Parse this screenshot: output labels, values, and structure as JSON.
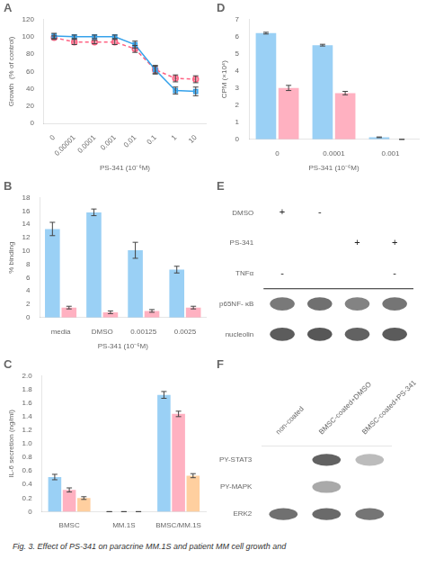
{
  "caption": "Fig. 3.  Effect of PS-341 on paracrine MM.1S and patient MM cell growth and",
  "chart_data": [
    {
      "type": "line",
      "title": "A",
      "xlabel": "PS-341 (10⁻⁶M)",
      "ylabel": "Growth  (% of control)",
      "categories": [
        "0",
        "0.00001",
        "0.0001",
        "0.001",
        "0.01",
        "0.1",
        "1",
        "10"
      ],
      "series": [
        {
          "values": [
            101,
            100,
            100,
            100,
            91,
            62,
            38,
            37
          ],
          "errors": [
            3,
            2,
            2,
            2,
            4,
            5,
            4,
            5
          ],
          "marker": "square",
          "line_style": "solid"
        },
        {
          "values": [
            99,
            94,
            94,
            94,
            86,
            62,
            52,
            51
          ],
          "errors": [
            2,
            3,
            2,
            3,
            4,
            4,
            4,
            4
          ],
          "marker": "circle",
          "line_style": "dashed"
        }
      ],
      "ylim": [
        0,
        120
      ],
      "yticks": [
        0,
        20,
        40,
        60,
        80,
        100,
        120
      ],
      "grid": false
    },
    {
      "type": "bar",
      "title": "D",
      "xlabel": "PS-341 (10⁻⁶M)",
      "ylabel": "CPM (×10⁴)",
      "categories": [
        "0",
        "0.0001",
        "0.001"
      ],
      "series": [
        {
          "values": [
            6.2,
            5.5,
            0.12
          ],
          "errors": [
            0.05,
            0.05,
            0.02
          ]
        },
        {
          "values": [
            3.0,
            2.7,
            0.0
          ],
          "errors": [
            0.15,
            0.1,
            0.0
          ]
        }
      ],
      "ylim": [
        0,
        7
      ],
      "yticks": [
        0,
        1,
        2,
        3,
        4,
        5,
        6,
        7
      ],
      "grid": false
    },
    {
      "type": "bar",
      "title": "B",
      "xlabel": "PS-341 (10⁻⁶M)",
      "ylabel": "% binding",
      "categories": [
        "media",
        "DMSO",
        "0.00125",
        "0.0025"
      ],
      "series": [
        {
          "values": [
            13.3,
            15.8,
            10.1,
            7.2
          ],
          "errors": [
            1.0,
            0.5,
            1.2,
            0.5
          ]
        },
        {
          "values": [
            1.5,
            0.8,
            1.0,
            1.5
          ],
          "errors": [
            0.2,
            0.2,
            0.2,
            0.2
          ]
        }
      ],
      "ylim": [
        0,
        18
      ],
      "yticks": [
        0,
        2,
        4,
        6,
        8,
        10,
        12,
        14,
        16,
        18
      ],
      "grid": false
    },
    {
      "type": "heatmap",
      "title": "E",
      "header_rows": [
        {
          "label": "DMSO",
          "signs": [
            "+",
            "-",
            null,
            null
          ]
        },
        {
          "label": "PS-341",
          "signs": [
            null,
            null,
            "+",
            "+"
          ]
        },
        {
          "label": "TNFα",
          "signs": [
            "-",
            null,
            null,
            "-"
          ]
        }
      ],
      "rows": [
        "p65NF- κB",
        "nucleolin"
      ],
      "cells": [
        [
          0.7,
          0.75,
          0.65,
          0.72
        ],
        [
          0.85,
          0.88,
          0.82,
          0.86
        ]
      ],
      "grid": false,
      "tick_labels": "y"
    },
    {
      "type": "bar",
      "title": "C",
      "ylabel": "IL-6 secretion (ng/ml)",
      "categories": [
        "BMSC",
        "MM.1S",
        "BMSC/MM.1S"
      ],
      "series": [
        {
          "values": [
            0.51,
            0.0,
            1.72
          ],
          "errors": [
            0.04,
            0.0,
            0.05
          ]
        },
        {
          "values": [
            0.32,
            0.0,
            1.44
          ],
          "errors": [
            0.03,
            0.0,
            0.04
          ]
        },
        {
          "values": [
            0.2,
            0.0,
            0.53
          ],
          "errors": [
            0.02,
            0.0,
            0.03
          ]
        }
      ],
      "ylim": [
        0,
        2.0
      ],
      "yticks": [
        0,
        0.2,
        0.4,
        0.6,
        0.8,
        {
          "value": 1.0,
          "label": "1.0"
        },
        1.2,
        1.4,
        1.6,
        1.8,
        {
          "value": 2.0,
          "label": "2.0"
        }
      ],
      "grid": false
    },
    {
      "type": "heatmap",
      "title": "F",
      "columns": [
        "non-coated",
        "BMSC-coated+DMSO",
        "BMSC-coated+PS-341"
      ],
      "rows": [
        "PY-STAT3",
        "PY-MAPK",
        "ERK2"
      ],
      "cells": [
        [
          0.0,
          0.82,
          0.35
        ],
        [
          0.0,
          0.45,
          0.0
        ],
        [
          0.75,
          0.78,
          0.72
        ]
      ],
      "grid": false
    }
  ]
}
